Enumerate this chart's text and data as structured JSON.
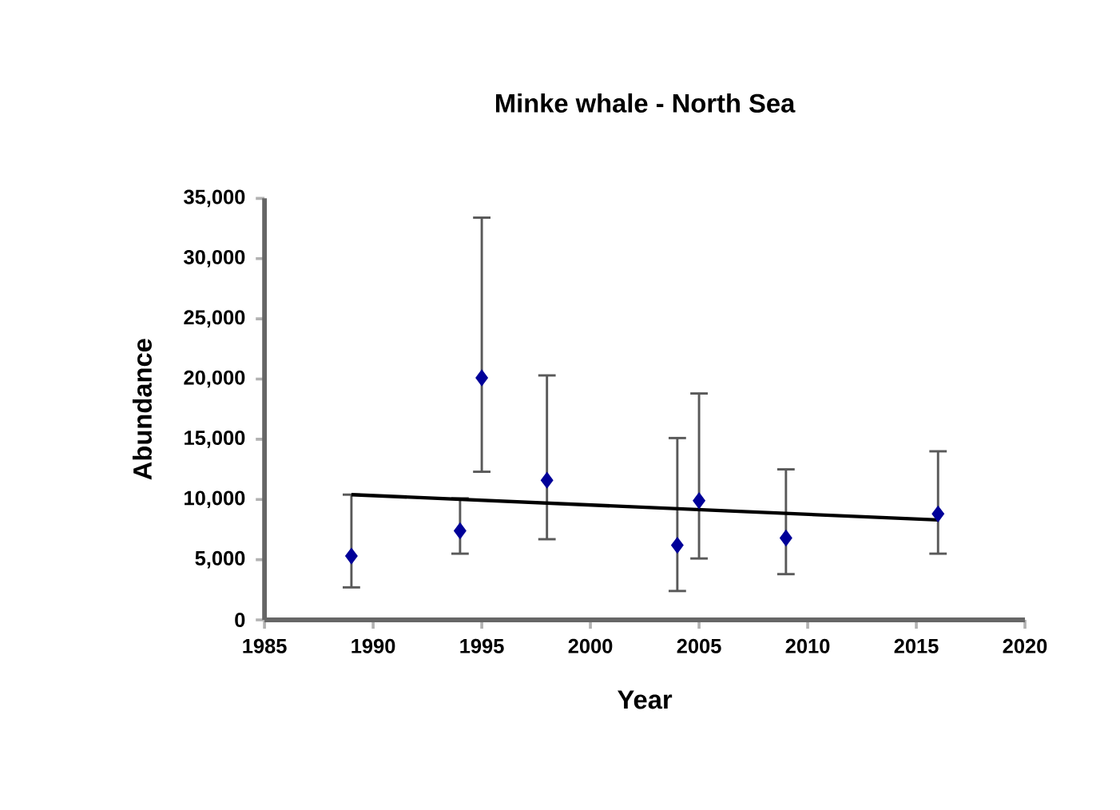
{
  "chart_data": {
    "type": "scatter",
    "title": "Minke whale - North Sea",
    "xlabel": "Year",
    "ylabel": "Abundance",
    "xlim": [
      1985,
      2020
    ],
    "xticks": [
      1985,
      1990,
      1995,
      2000,
      2005,
      2010,
      2015,
      2020
    ],
    "ylim": [
      0,
      35000
    ],
    "yticks": [
      0,
      {
        "value": 5000,
        "label": "5,000"
      },
      {
        "value": 10000,
        "label": "10,000"
      },
      {
        "value": 15000,
        "label": "15,000"
      },
      {
        "value": 20000,
        "label": "20,000"
      },
      {
        "value": 25000,
        "label": "25,000"
      },
      {
        "value": 30000,
        "label": "30,000"
      },
      {
        "value": 35000,
        "label": "35,000"
      }
    ],
    "grid": false,
    "legend": false,
    "marker": "diamond",
    "series": [
      {
        "color": "#000099",
        "x": [
          1989,
          1994,
          1995,
          1998,
          2004,
          2005,
          2009,
          2016
        ],
        "values": [
          5300,
          7400,
          20100,
          11600,
          6200,
          9900,
          6800,
          8800
        ],
        "errors": [
          [
            2700,
            10400
          ],
          [
            5500,
            10100
          ],
          [
            12300,
            33400
          ],
          [
            6700,
            20300
          ],
          [
            2400,
            15100
          ],
          [
            5100,
            18800
          ],
          [
            3800,
            12500
          ],
          [
            5500,
            14000
          ]
        ]
      },
      {
        "type": "line",
        "color": "#000000",
        "marker": "none",
        "x": [
          1989,
          2016
        ],
        "values": [
          10400,
          8300
        ]
      }
    ]
  }
}
